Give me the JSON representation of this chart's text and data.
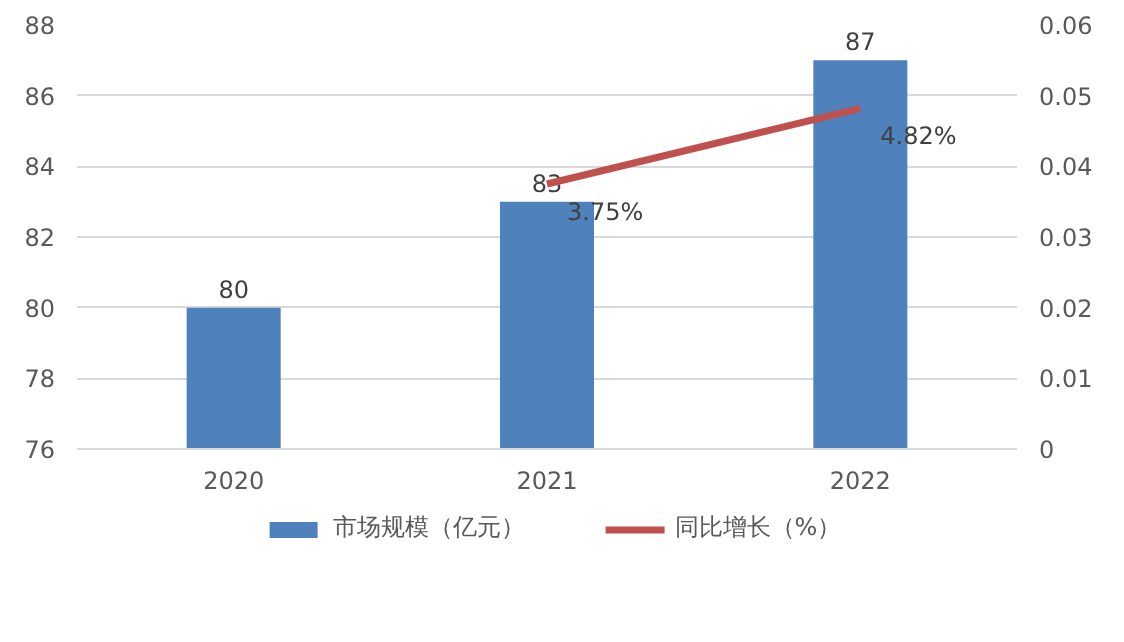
{
  "chart_data": {
    "type": "bar",
    "categories": [
      "2020",
      "2021",
      "2022"
    ],
    "series": [
      {
        "name": "市场规模（亿元）",
        "color": "#4f81bd",
        "values": [
          80,
          83,
          87
        ],
        "value_labels": [
          "80",
          "83",
          "87"
        ]
      },
      {
        "name": "同比增长（%）",
        "type": "line",
        "axis": "y2",
        "color": "#c0504d",
        "values": [
          null,
          0.0375,
          0.0482
        ],
        "value_labels": [
          null,
          "3.75%",
          "4.82%"
        ]
      }
    ],
    "ylim": [
      76,
      88
    ],
    "yticks": [
      76,
      78,
      80,
      82,
      84,
      86,
      88
    ],
    "y2lim": [
      0,
      0.06
    ],
    "y2ticks": [
      0,
      0.01,
      0.02,
      0.03,
      0.04,
      0.05,
      0.06
    ],
    "grid": "y",
    "legend": "bottom",
    "marker": "none",
    "line_style": "solid"
  }
}
